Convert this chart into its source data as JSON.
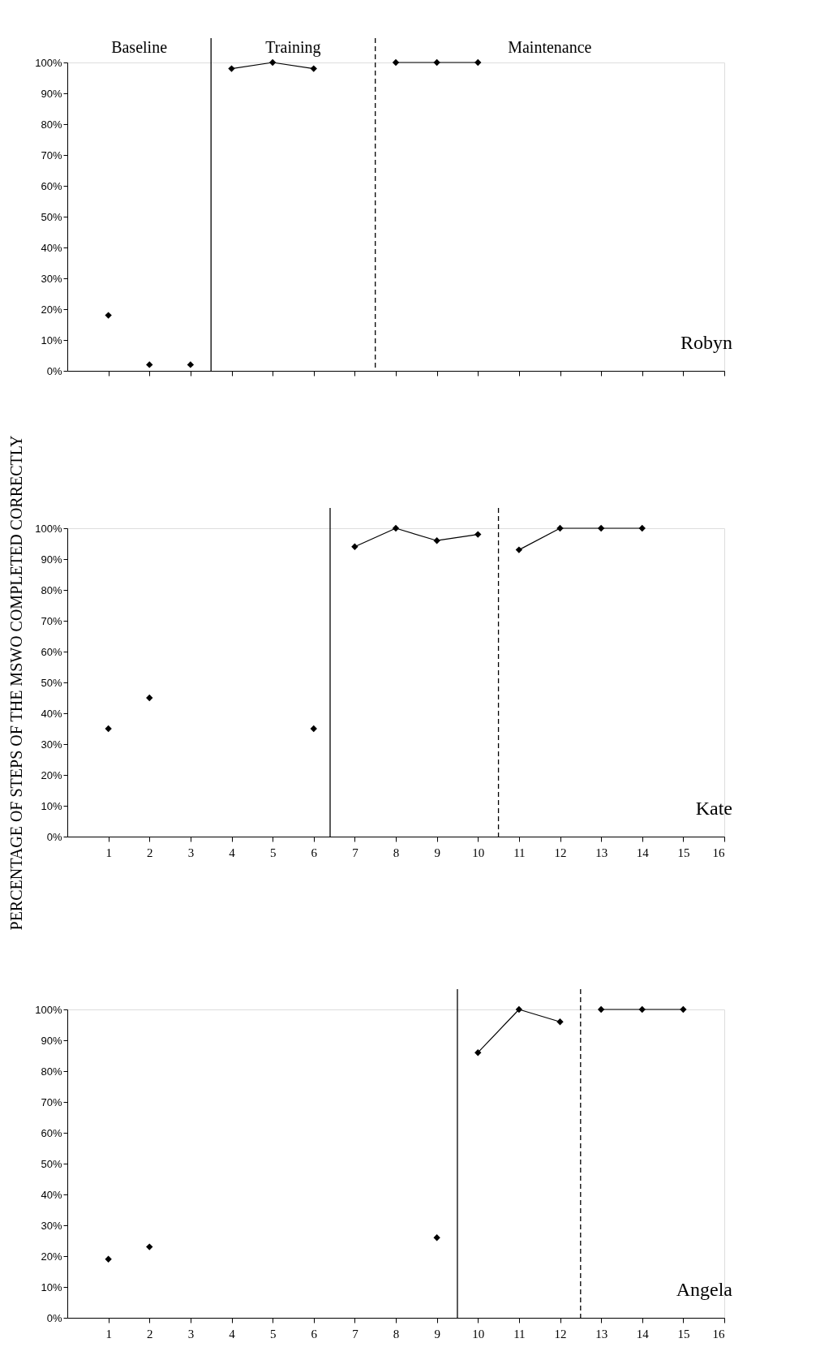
{
  "chart_data": [
    {
      "type": "line",
      "xlim": [
        0,
        16
      ],
      "xticks": [
        1,
        2,
        3,
        4,
        5,
        6,
        7,
        8,
        9,
        10,
        11,
        12,
        13,
        14,
        15,
        16
      ],
      "ylim": [
        0,
        100
      ],
      "yticks": [
        {
          "value": 0,
          "label": "0%"
        },
        {
          "value": 10,
          "label": "10%"
        },
        {
          "value": 20,
          "label": "20%"
        },
        {
          "value": 30,
          "label": "30%"
        },
        {
          "value": 40,
          "label": "40%"
        },
        {
          "value": 50,
          "label": "50%"
        },
        {
          "value": 60,
          "label": "60%"
        },
        {
          "value": 70,
          "label": "70%"
        },
        {
          "value": 80,
          "label": "80%"
        },
        {
          "value": 90,
          "label": "90%"
        },
        {
          "value": 100,
          "label": "100%"
        }
      ],
      "tick_labels": "y",
      "grid": false,
      "marker": "diamond",
      "line_style": "solid",
      "series": [
        {
          "type": "scatter",
          "color": "#000000",
          "x": [
            1,
            2,
            3
          ],
          "values": [
            18,
            2,
            2
          ]
        },
        {
          "type": "line",
          "color": "#000000",
          "x": [
            4,
            5,
            6
          ],
          "values": [
            98,
            100,
            98
          ]
        },
        {
          "type": "line",
          "color": "#000000",
          "x": [
            8,
            9,
            10
          ],
          "values": [
            100,
            100,
            100
          ]
        }
      ],
      "ref_lines": [
        {
          "axis": "x",
          "value": 3.5,
          "line_style": "solid",
          "color": "#000000"
        },
        {
          "axis": "x",
          "value": 7.5,
          "line_style": "dashed",
          "color": "#000000"
        }
      ],
      "annotations": [
        "Baseline",
        "Training",
        "Maintenance",
        "Robyn"
      ]
    },
    {
      "type": "line",
      "xlim": [
        0,
        16
      ],
      "xticks": [
        1,
        2,
        3,
        4,
        5,
        6,
        7,
        8,
        9,
        10,
        11,
        12,
        13,
        14,
        15,
        16
      ],
      "ylim": [
        0,
        100
      ],
      "yticks": [
        {
          "value": 0,
          "label": "0%"
        },
        {
          "value": 10,
          "label": "10%"
        },
        {
          "value": 20,
          "label": "20%"
        },
        {
          "value": 30,
          "label": "30%"
        },
        {
          "value": 40,
          "label": "40%"
        },
        {
          "value": 50,
          "label": "50%"
        },
        {
          "value": 60,
          "label": "60%"
        },
        {
          "value": 70,
          "label": "70%"
        },
        {
          "value": 80,
          "label": "80%"
        },
        {
          "value": 90,
          "label": "90%"
        },
        {
          "value": 100,
          "label": "100%"
        }
      ],
      "ylabel": "PERCENTAGE OF STEPS OF THE MSWO COMPLETED CORRECTLY",
      "grid": false,
      "marker": "diamond",
      "line_style": "solid",
      "series": [
        {
          "type": "scatter",
          "color": "#000000",
          "x": [
            1,
            2,
            6
          ],
          "values": [
            35,
            45,
            35
          ]
        },
        {
          "type": "line",
          "color": "#000000",
          "x": [
            7,
            8,
            9,
            10
          ],
          "values": [
            94,
            100,
            96,
            98
          ]
        },
        {
          "type": "line",
          "color": "#000000",
          "x": [
            11,
            12,
            13,
            14
          ],
          "values": [
            93,
            100,
            100,
            100
          ]
        }
      ],
      "ref_lines": [
        {
          "axis": "x",
          "value": 6.4,
          "line_style": "solid",
          "color": "#000000"
        },
        {
          "axis": "x",
          "value": 10.5,
          "line_style": "dashed",
          "color": "#000000"
        }
      ],
      "annotations": [
        "Kate"
      ]
    },
    {
      "type": "line",
      "xlim": [
        0,
        16
      ],
      "xticks": [
        1,
        2,
        3,
        4,
        5,
        6,
        7,
        8,
        9,
        10,
        11,
        12,
        13,
        14,
        15,
        16
      ],
      "ylim": [
        0,
        100
      ],
      "yticks": [
        {
          "value": 0,
          "label": "0%"
        },
        {
          "value": 10,
          "label": "10%"
        },
        {
          "value": 20,
          "label": "20%"
        },
        {
          "value": 30,
          "label": "30%"
        },
        {
          "value": 40,
          "label": "40%"
        },
        {
          "value": 50,
          "label": "50%"
        },
        {
          "value": 60,
          "label": "60%"
        },
        {
          "value": 70,
          "label": "70%"
        },
        {
          "value": 80,
          "label": "80%"
        },
        {
          "value": 90,
          "label": "90%"
        },
        {
          "value": 100,
          "label": "100%"
        }
      ],
      "grid": false,
      "marker": "diamond",
      "line_style": "solid",
      "series": [
        {
          "type": "scatter",
          "color": "#000000",
          "x": [
            1,
            2,
            9
          ],
          "values": [
            19,
            23,
            26
          ]
        },
        {
          "type": "line",
          "color": "#000000",
          "x": [
            10,
            11,
            12
          ],
          "values": [
            86,
            100,
            96
          ]
        },
        {
          "type": "line",
          "color": "#000000",
          "x": [
            13,
            14,
            15
          ],
          "values": [
            100,
            100,
            100
          ]
        }
      ],
      "ref_lines": [
        {
          "axis": "x",
          "value": 9.5,
          "line_style": "solid",
          "color": "#000000"
        },
        {
          "axis": "x",
          "value": 12.5,
          "line_style": "dashed",
          "color": "#000000"
        }
      ],
      "annotations": [
        "Angela"
      ]
    }
  ]
}
